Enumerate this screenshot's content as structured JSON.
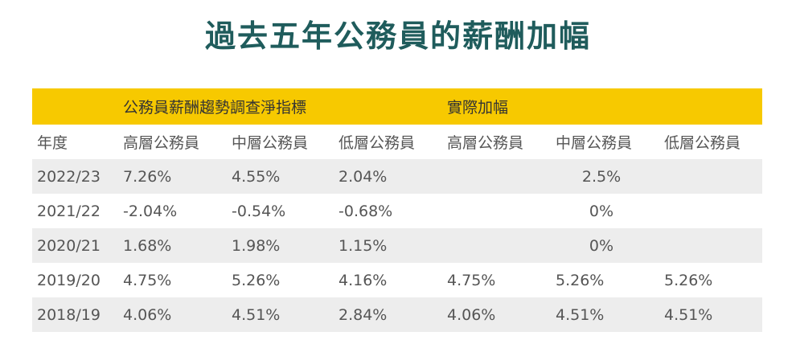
{
  "title": "過去五年公務員的薪酬加幅",
  "table": {
    "group_headers": [
      "公務員薪酬趨勢調查淨指標",
      "實際加幅"
    ],
    "column_headers": [
      "年度",
      "高層公務員",
      "中層公務員",
      "低層公務員",
      "高層公務員",
      "中層公務員",
      "低層公務員"
    ],
    "rows": [
      [
        "2022/23",
        "7.26%",
        "4.55%",
        "2.04%",
        "2.5%"
      ],
      [
        "2021/22",
        "-2.04%",
        "-0.54%",
        "-0.68%",
        "0%"
      ],
      [
        "2020/21",
        "1.68%",
        "1.98%",
        "1.15%",
        "0%"
      ],
      [
        "2019/20",
        "4.75%",
        "5.26%",
        "4.16%",
        "4.75%",
        "5.26%",
        "5.26%"
      ],
      [
        "2018/19",
        "4.06%",
        "4.51%",
        "2.84%",
        "4.06%",
        "4.51%",
        "4.51%"
      ]
    ]
  }
}
